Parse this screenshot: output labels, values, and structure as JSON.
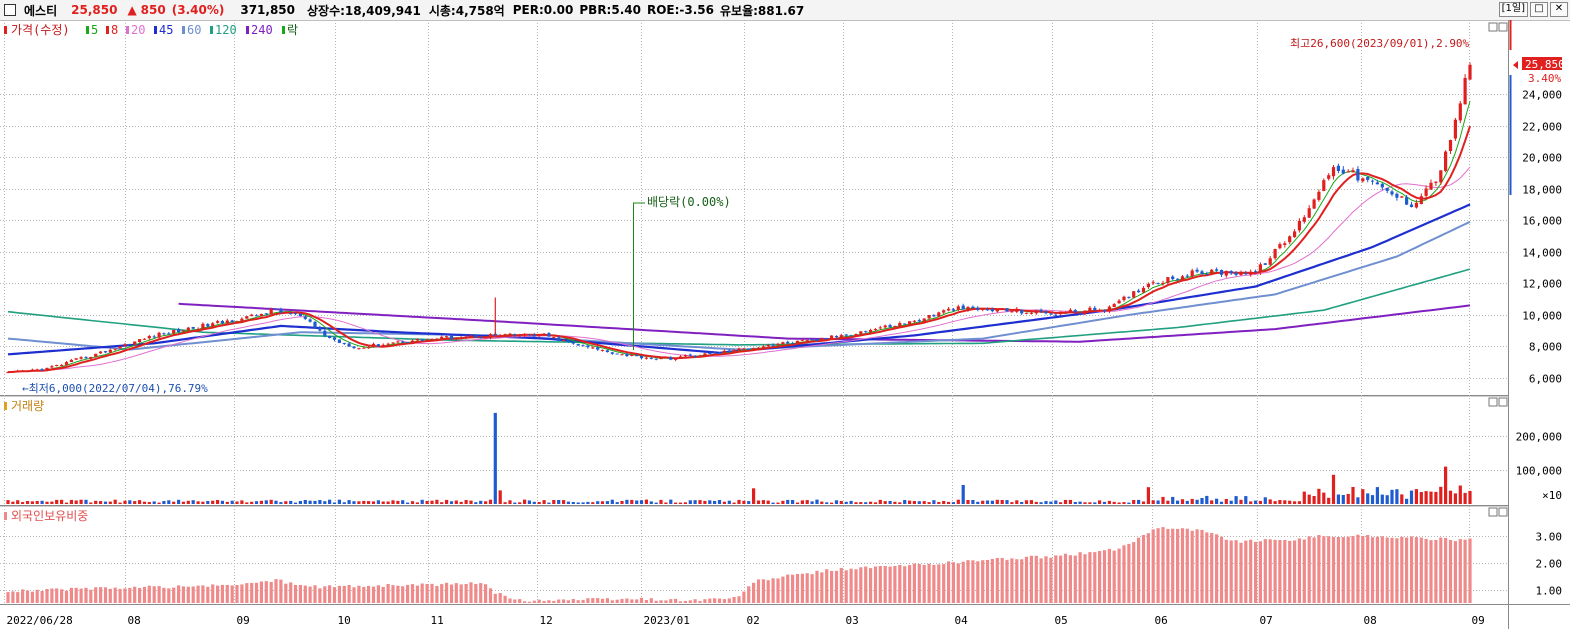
{
  "header": {
    "stock_name": "에스티",
    "price": "25,850",
    "change_arrow": "▲",
    "change": "850",
    "change_pct": "(3.40%)",
    "volume": "371,850",
    "listed_shares": "상장수:18,409,941",
    "market_cap": "시총:4,758억",
    "per": "PER:0.00",
    "pbr": "PBR:5.40",
    "roe": "ROE:-3.56",
    "float_ratio": "유보율:881.67",
    "period_button": "[1일]",
    "maximize_icon": "window-maximize-icon",
    "close_icon": "close-icon"
  },
  "legend": {
    "price_label": "가격(수정)",
    "ma": [
      {
        "label": "5",
        "color": "#18a818"
      },
      {
        "label": "8",
        "color": "#e0201f"
      },
      {
        "label": "20",
        "color": "#e070d0"
      },
      {
        "label": "45",
        "color": "#1e2fd0"
      },
      {
        "label": "60",
        "color": "#6f8fd0"
      },
      {
        "label": "120",
        "color": "#20a080"
      },
      {
        "label": "240",
        "color": "#8020c0"
      }
    ],
    "ex_label": "락",
    "volume_label": "거래량",
    "foreign_label": "외국인보유비중"
  },
  "annotations": {
    "high": "최고26,600(2023/09/01),2.90%",
    "low": "←최저6,000(2022/07/04),76.79%",
    "dividend": "배당락(0.00%)",
    "price_tag": "25,850",
    "pct_tag": "3.40%"
  },
  "colors": {
    "up": "#e0201f",
    "down": "#1e5bd0",
    "foreign_bar": "#f08a8a",
    "grid": "#9a9a9a"
  },
  "chart_data": {
    "type": "candlestick",
    "price_axis": {
      "ticks": [
        "24,000",
        "22,000",
        "20,000",
        "18,000",
        "16,000",
        "14,000",
        "12,000",
        "10,000",
        "8,000",
        "6,000"
      ],
      "values": [
        24000,
        22000,
        20000,
        18000,
        16000,
        14000,
        12000,
        10000,
        8000,
        6000
      ]
    },
    "volume_axis": {
      "ticks": [
        "200,000",
        "100,000"
      ],
      "values": [
        200000,
        100000
      ],
      "unit": "×10"
    },
    "foreign_axis": {
      "ticks": [
        "3.00",
        "2.00",
        "1.00"
      ],
      "values": [
        3,
        2,
        1
      ]
    },
    "x_ticks": [
      "2022/06/28",
      "08",
      "09",
      "10",
      "11",
      "12",
      "2023/01",
      "02",
      "03",
      "04",
      "05",
      "06",
      "07",
      "08",
      "09"
    ],
    "price_keypoints": [
      [
        0,
        6300
      ],
      [
        8,
        6600
      ],
      [
        18,
        7500
      ],
      [
        30,
        8700
      ],
      [
        40,
        9300
      ],
      [
        50,
        9900
      ],
      [
        55,
        10300
      ],
      [
        60,
        9900
      ],
      [
        66,
        8500
      ],
      [
        72,
        7900
      ],
      [
        80,
        8300
      ],
      [
        92,
        8600
      ],
      [
        100,
        8700
      ],
      [
        110,
        8700
      ],
      [
        118,
        8000
      ],
      [
        126,
        7500
      ],
      [
        134,
        7200
      ],
      [
        146,
        7600
      ],
      [
        156,
        8100
      ],
      [
        166,
        8400
      ],
      [
        176,
        9000
      ],
      [
        186,
        9600
      ],
      [
        194,
        10400
      ],
      [
        204,
        10300
      ],
      [
        214,
        10100
      ],
      [
        226,
        10400
      ],
      [
        234,
        12000
      ],
      [
        244,
        12700
      ],
      [
        256,
        12700
      ],
      [
        264,
        15300
      ],
      [
        272,
        19500
      ],
      [
        280,
        18300
      ],
      [
        288,
        17000
      ],
      [
        294,
        19000
      ],
      [
        300,
        25850
      ]
    ],
    "ma_keypoints": {
      "ma45": [
        [
          0,
          7500
        ],
        [
          30,
          8200
        ],
        [
          56,
          9300
        ],
        [
          80,
          8900
        ],
        [
          110,
          8500
        ],
        [
          146,
          7600
        ],
        [
          186,
          8700
        ],
        [
          226,
          10300
        ],
        [
          256,
          11800
        ],
        [
          280,
          14300
        ],
        [
          300,
          17000
        ]
      ],
      "ma60": [
        [
          0,
          8500
        ],
        [
          25,
          7800
        ],
        [
          60,
          8900
        ],
        [
          100,
          8700
        ],
        [
          150,
          7800
        ],
        [
          200,
          8500
        ],
        [
          230,
          10000
        ],
        [
          260,
          11300
        ],
        [
          285,
          13700
        ],
        [
          300,
          15900
        ]
      ],
      "ma120": [
        [
          0,
          10200
        ],
        [
          40,
          8900
        ],
        [
          90,
          8400
        ],
        [
          150,
          8100
        ],
        [
          200,
          8200
        ],
        [
          240,
          9200
        ],
        [
          270,
          10300
        ],
        [
          300,
          12900
        ]
      ],
      "ma240": [
        [
          35,
          10700
        ],
        [
          100,
          9600
        ],
        [
          160,
          8500
        ],
        [
          220,
          8300
        ],
        [
          260,
          9100
        ],
        [
          300,
          10600
        ]
      ]
    },
    "dividend_ex_index": 128
  }
}
